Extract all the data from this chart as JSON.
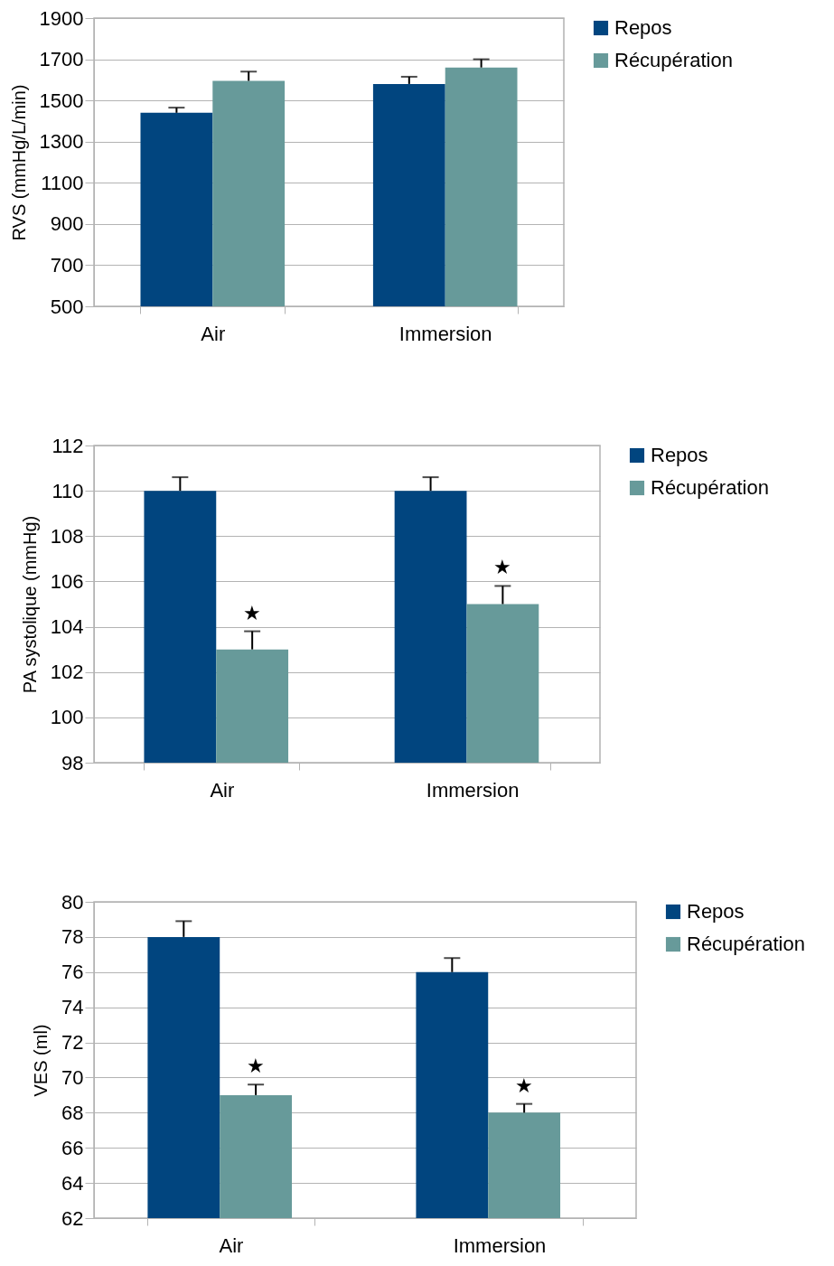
{
  "chart_data": [
    {
      "type": "bar",
      "categories": [
        "Air",
        "Immersion"
      ],
      "ylabel": "RVS (mmHg/L/min)",
      "ylim": [
        500,
        1900
      ],
      "yticks": [
        500,
        700,
        900,
        1100,
        1300,
        1500,
        1700,
        1900
      ],
      "grid": "y",
      "legend": "right",
      "series": [
        {
          "name": "Repos",
          "color": "#01457f",
          "values": [
            1440,
            1580
          ],
          "errors": [
            [
              1440,
              1465
            ],
            [
              1580,
              1615
            ]
          ]
        },
        {
          "name": "Récupération",
          "color": "#679a9a",
          "values": [
            1595,
            1660
          ],
          "errors": [
            [
              1595,
              1640
            ],
            [
              1660,
              1700
            ]
          ]
        }
      ]
    },
    {
      "type": "bar",
      "categories": [
        "Air",
        "Immersion"
      ],
      "ylabel": "PA systolique (mmHg)",
      "ylim": [
        98,
        112
      ],
      "yticks": [
        98,
        100,
        102,
        104,
        106,
        108,
        110,
        112
      ],
      "grid": "y",
      "legend": "right",
      "series": [
        {
          "name": "Repos",
          "color": "#01457f",
          "values": [
            110,
            110
          ],
          "errors": [
            [
              110,
              110.6
            ],
            [
              110,
              110.6
            ]
          ]
        },
        {
          "name": "Récupération",
          "color": "#679a9a",
          "values": [
            103,
            105
          ],
          "errors": [
            [
              103,
              103.8
            ],
            [
              105,
              105.8
            ]
          ]
        }
      ],
      "annotations": [
        "★",
        "★"
      ]
    },
    {
      "type": "bar",
      "categories": [
        "Air",
        "Immersion"
      ],
      "ylabel": "VES (ml)",
      "ylim": [
        62,
        80
      ],
      "yticks": [
        62,
        64,
        66,
        68,
        70,
        72,
        74,
        76,
        78,
        80
      ],
      "grid": "y",
      "legend": "right",
      "series": [
        {
          "name": "Repos",
          "color": "#01457f",
          "values": [
            78,
            76
          ],
          "errors": [
            [
              78,
              78.9
            ],
            [
              76,
              76.8
            ]
          ]
        },
        {
          "name": "Récupération",
          "color": "#679a9a",
          "values": [
            69,
            68
          ],
          "errors": [
            [
              69,
              69.6
            ],
            [
              68,
              68.5
            ]
          ]
        }
      ],
      "annotations": [
        "★",
        "★"
      ]
    }
  ]
}
